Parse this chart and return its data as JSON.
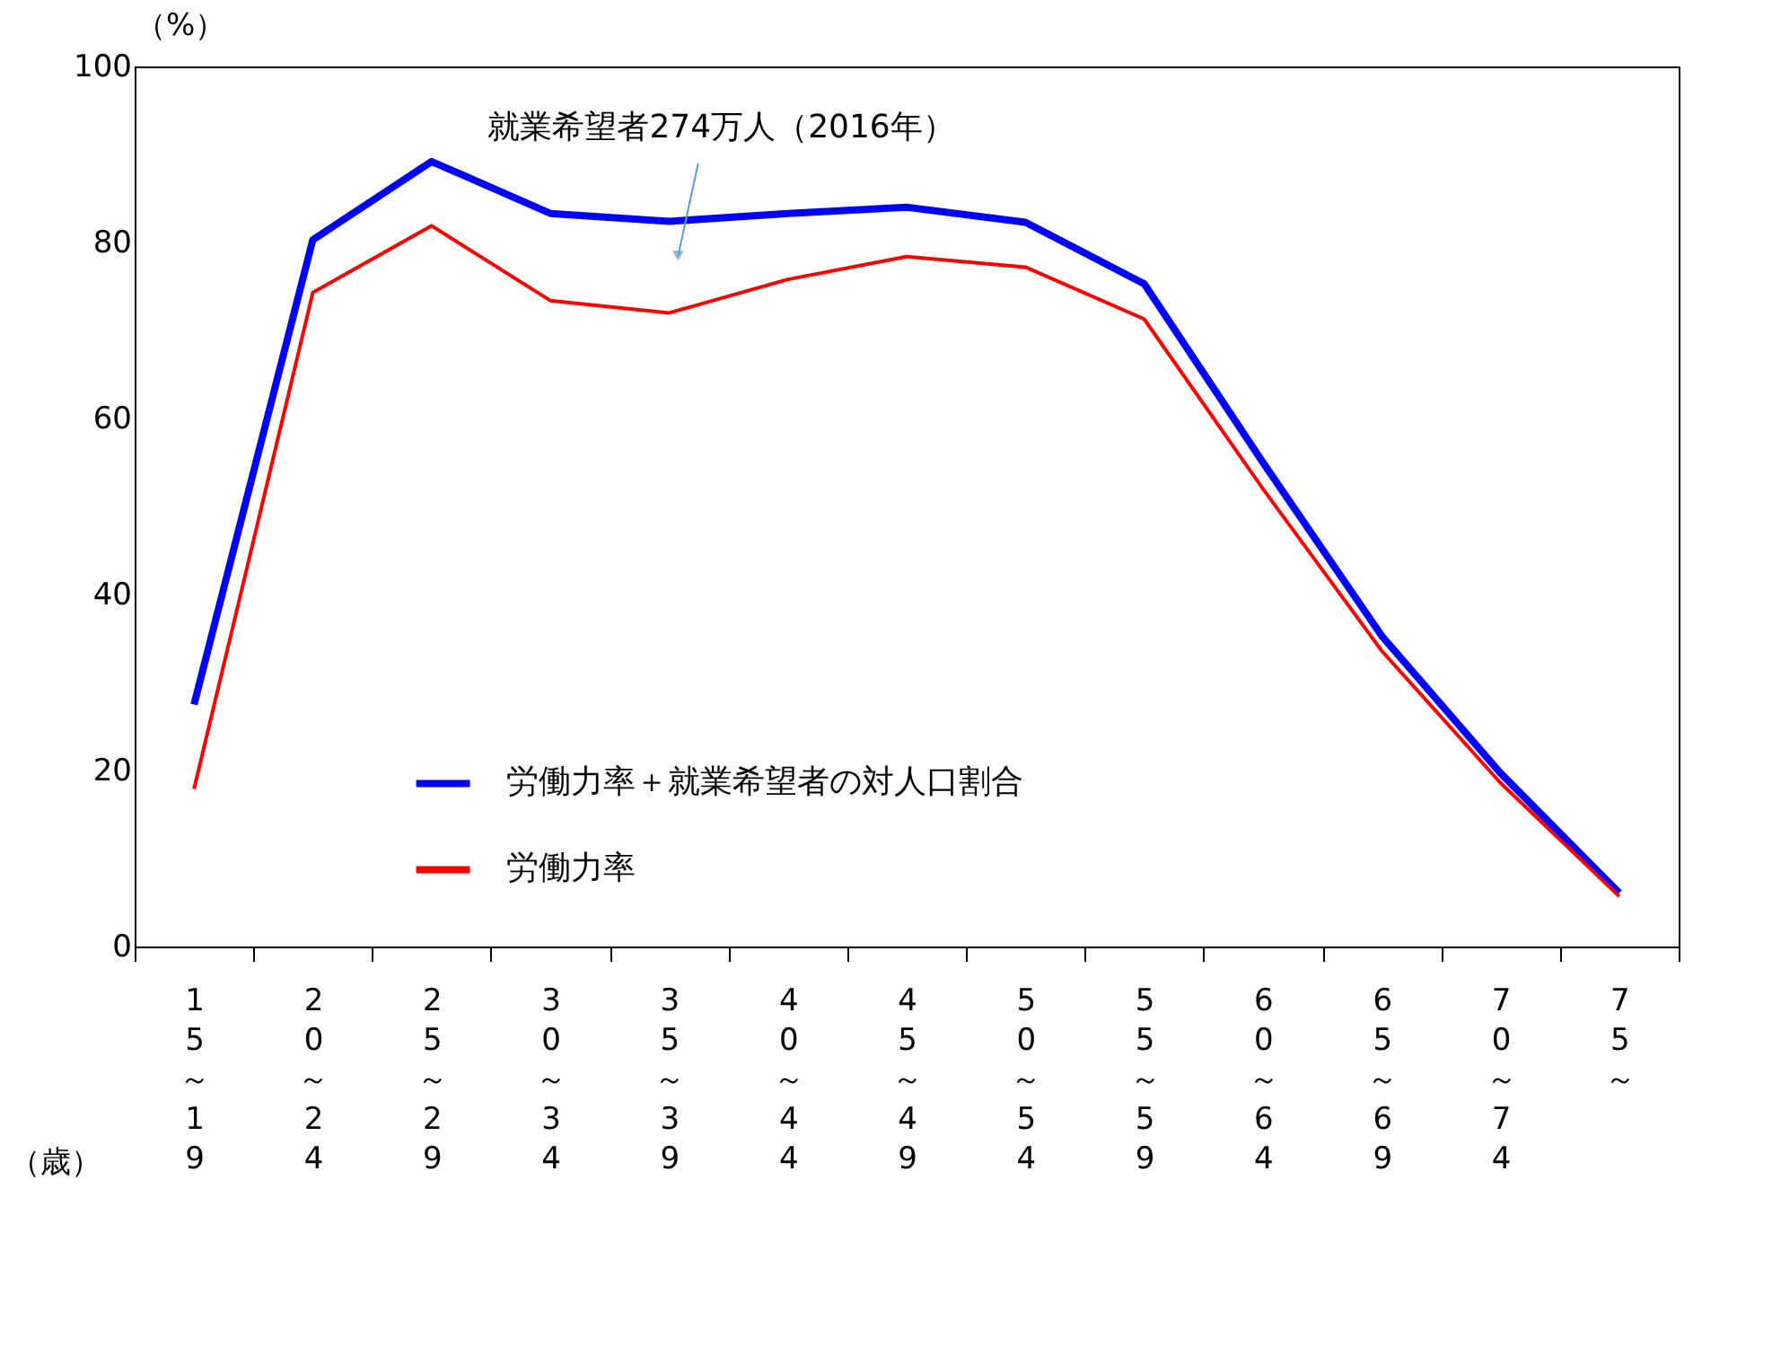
{
  "chart_data": {
    "type": "line",
    "ylabel": "（%）",
    "xlabel": "（歳）",
    "categories": [
      "15～19",
      "20～24",
      "25～29",
      "30～34",
      "35～39",
      "40～44",
      "45～49",
      "50～54",
      "55～59",
      "60～64",
      "65～69",
      "70～74",
      "75～"
    ],
    "series": [
      {
        "name": "労働力率＋就業希望者の対人口割合",
        "color": "#0000ff",
        "values": [
          27.5,
          80.3,
          89.2,
          83.3,
          82.4,
          83.3,
          84.0,
          82.3,
          75.3,
          55.0,
          35.3,
          19.7,
          6.1
        ]
      },
      {
        "name": "労働力率",
        "color": "#ff0000",
        "values": [
          17.9,
          74.3,
          81.9,
          73.4,
          72.0,
          75.8,
          78.4,
          77.2,
          71.3,
          52.0,
          33.6,
          18.6,
          5.7
        ]
      }
    ],
    "ylim": [
      0,
      100
    ],
    "yticks": [
      0,
      20,
      40,
      60,
      80,
      100
    ],
    "grid": false,
    "legend": "bottom",
    "marker": "none",
    "line_style": "solid",
    "annotations": [
      "就業希望者274万人（2016年）"
    ]
  }
}
